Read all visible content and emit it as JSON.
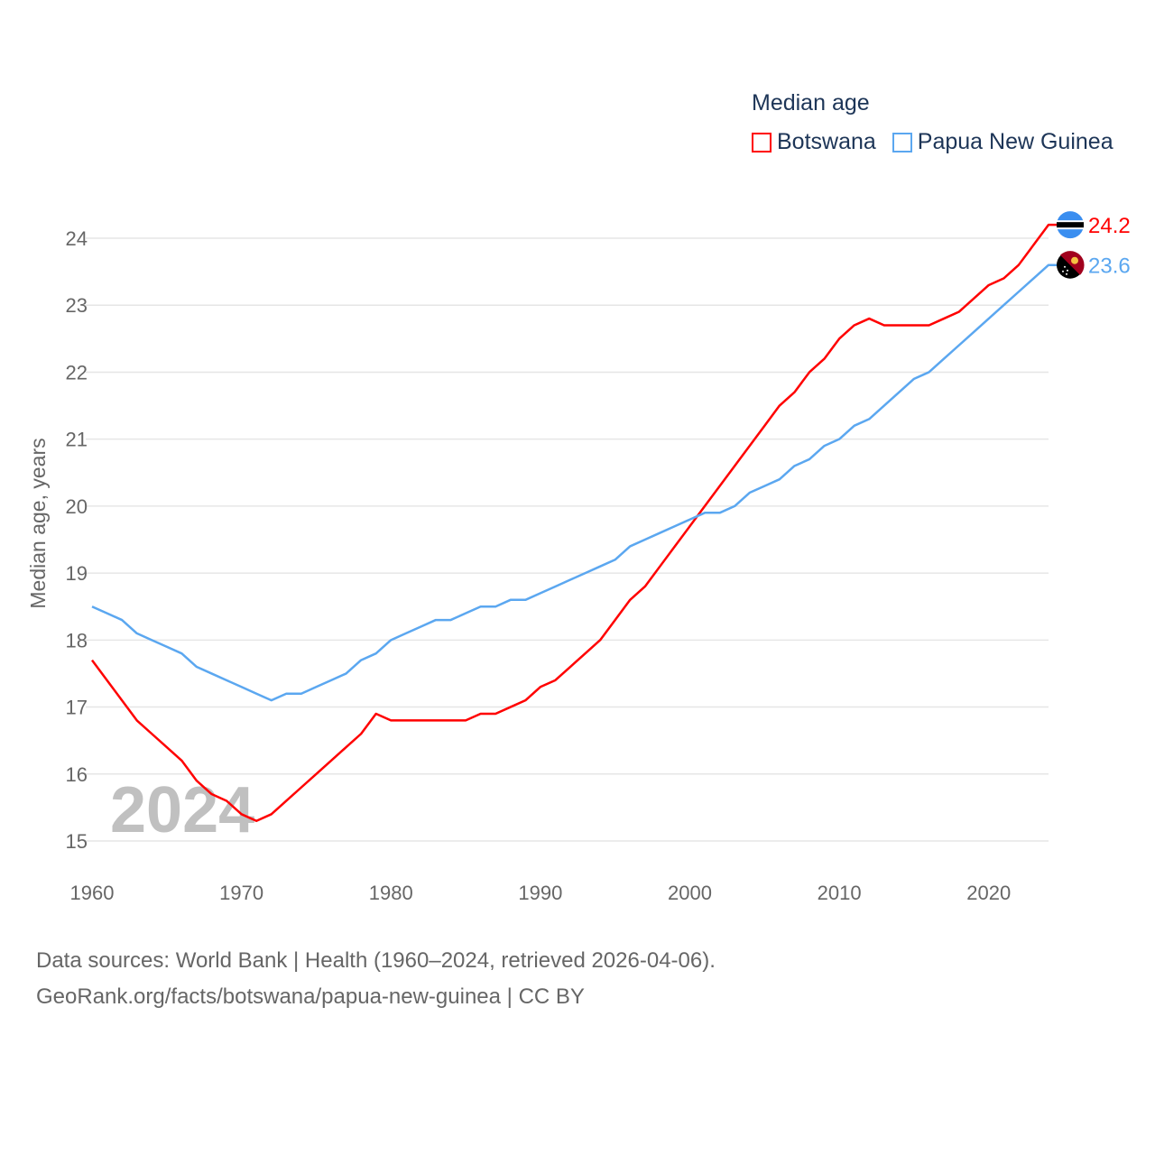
{
  "chart_data": {
    "type": "line",
    "title": "Median age",
    "ylabel": "Median age, years",
    "xlabel": "",
    "xlim": [
      1960,
      2024
    ],
    "ylim": [
      15,
      24
    ],
    "x_ticks": [
      "1960",
      "1970",
      "1980",
      "1990",
      "2000",
      "2010",
      "2020"
    ],
    "y_ticks": [
      "15",
      "16",
      "17",
      "18",
      "19",
      "20",
      "21",
      "22",
      "23",
      "24"
    ],
    "grid": true,
    "legend_placement": "top-right",
    "watermark_year": "2024",
    "x": [
      1960,
      1961,
      1962,
      1963,
      1964,
      1965,
      1966,
      1967,
      1968,
      1969,
      1970,
      1971,
      1972,
      1973,
      1974,
      1975,
      1976,
      1977,
      1978,
      1979,
      1980,
      1981,
      1982,
      1983,
      1984,
      1985,
      1986,
      1987,
      1988,
      1989,
      1990,
      1991,
      1992,
      1993,
      1994,
      1995,
      1996,
      1997,
      1998,
      1999,
      2000,
      2001,
      2002,
      2003,
      2004,
      2005,
      2006,
      2007,
      2008,
      2009,
      2010,
      2011,
      2012,
      2013,
      2014,
      2015,
      2016,
      2017,
      2018,
      2019,
      2020,
      2021,
      2022,
      2023,
      2024
    ],
    "series": [
      {
        "name": "Botswana",
        "color": "#ff0000",
        "end_label": "24.2",
        "values": [
          17.7,
          17.4,
          17.1,
          16.8,
          16.6,
          16.4,
          16.2,
          15.9,
          15.7,
          15.6,
          15.4,
          15.3,
          15.4,
          15.6,
          15.8,
          16.0,
          16.2,
          16.4,
          16.6,
          16.9,
          16.8,
          16.8,
          16.8,
          16.8,
          16.8,
          16.8,
          16.9,
          16.9,
          17.0,
          17.1,
          17.3,
          17.4,
          17.6,
          17.8,
          18.0,
          18.3,
          18.6,
          18.8,
          19.1,
          19.4,
          19.7,
          20.0,
          20.3,
          20.6,
          20.9,
          21.2,
          21.5,
          21.7,
          22.0,
          22.2,
          22.5,
          22.7,
          22.8,
          22.7,
          22.7,
          22.7,
          22.7,
          22.8,
          22.9,
          23.1,
          23.3,
          23.4,
          23.6,
          23.9,
          24.2
        ]
      },
      {
        "name": "Papua New Guinea",
        "color": "#5ba7f0",
        "end_label": "23.6",
        "values": [
          18.5,
          18.4,
          18.3,
          18.1,
          18.0,
          17.9,
          17.8,
          17.6,
          17.5,
          17.4,
          17.3,
          17.2,
          17.1,
          17.2,
          17.2,
          17.3,
          17.4,
          17.5,
          17.7,
          17.8,
          18.0,
          18.1,
          18.2,
          18.3,
          18.3,
          18.4,
          18.5,
          18.5,
          18.6,
          18.6,
          18.7,
          18.8,
          18.9,
          19.0,
          19.1,
          19.2,
          19.4,
          19.5,
          19.6,
          19.7,
          19.8,
          19.9,
          19.9,
          20.0,
          20.2,
          20.3,
          20.4,
          20.6,
          20.7,
          20.9,
          21.0,
          21.2,
          21.3,
          21.5,
          21.7,
          21.9,
          22.0,
          22.2,
          22.4,
          22.6,
          22.8,
          23.0,
          23.2,
          23.4,
          23.6
        ]
      }
    ]
  },
  "source": {
    "line1": "Data sources: World Bank | Health (1960–2024, retrieved 2026-04-06).",
    "line2": "GeoRank.org/facts/botswana/papua-new-guinea | CC BY"
  }
}
